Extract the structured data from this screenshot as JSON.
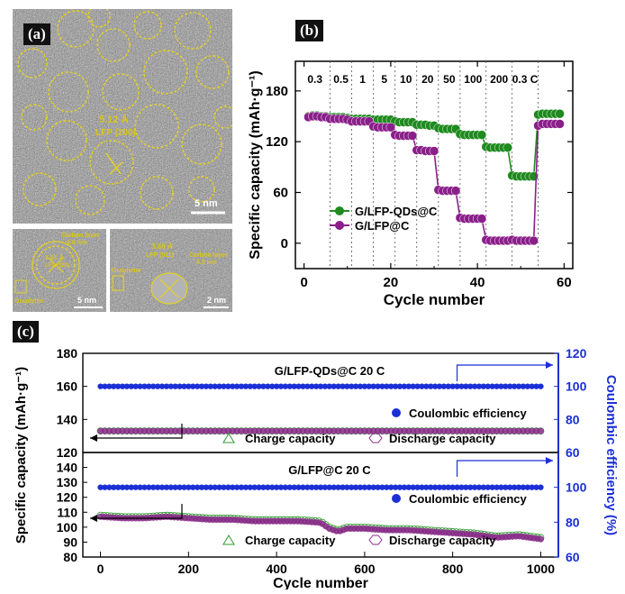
{
  "panel_a": {
    "label": "(a)",
    "main": {
      "spacing": "5.12 Å",
      "plane": "LFP (200)",
      "scale": "5 nm"
    },
    "inset_left": {
      "carbon_label": "Carbon layer",
      "carbon_thick": "0.6 nm",
      "spacing": "3.01 Å",
      "plane": "LFP (020)",
      "graphene": "Graphene",
      "scale": "5 nm"
    },
    "inset_right": {
      "spacing": "3.68 Å",
      "plane": "LFP (011)",
      "carbon_label": "Carbon layer",
      "carbon_thick": "0.5 nm",
      "graphene": "Graphene",
      "scale": "2 nm"
    },
    "colors": {
      "annotation": "#e6d21c",
      "background": "#8c8c8c"
    }
  },
  "panel_b": {
    "label": "(b)"
  },
  "panel_c": {
    "label": "(c)"
  },
  "chart_data": [
    {
      "type": "line",
      "panel": "(b)",
      "xlabel": "Cycle number",
      "ylabel": "Specific capacity (mAh·g⁻¹)",
      "xlim": [
        -2,
        62
      ],
      "ylim": [
        -30,
        215
      ],
      "xticks": [
        0,
        20,
        40,
        60
      ],
      "yticks": [
        0,
        60,
        120,
        180
      ],
      "rate_labels": [
        "0.3",
        "0.5",
        "1",
        "5",
        "10",
        "20",
        "50",
        "100",
        "200",
        "0.3 C"
      ],
      "rate_boundaries": [
        6,
        11,
        16,
        21,
        26,
        31,
        36,
        42,
        48,
        54
      ],
      "grid": false,
      "legend_position": "center-left",
      "series": [
        {
          "name": "G/LFP-QDs@C",
          "color": "#1f8a1f",
          "segments": [
            {
              "x": [
                1,
                2,
                3,
                4,
                5
              ],
              "y": [
                150,
                151,
                151,
                150,
                150
              ]
            },
            {
              "x": [
                6,
                7,
                8,
                9,
                10
              ],
              "y": [
                149,
                149,
                149,
                149,
                148
              ]
            },
            {
              "x": [
                11,
                12,
                13,
                14,
                15
              ],
              "y": [
                147,
                147,
                147,
                147,
                147
              ]
            },
            {
              "x": [
                16,
                17,
                18,
                19,
                20
              ],
              "y": [
                146,
                146,
                146,
                146,
                146
              ]
            },
            {
              "x": [
                21,
                22,
                23,
                24,
                25
              ],
              "y": [
                144,
                143,
                143,
                143,
                143
              ]
            },
            {
              "x": [
                26,
                27,
                28,
                29,
                30
              ],
              "y": [
                140,
                140,
                140,
                139,
                139
              ]
            },
            {
              "x": [
                31,
                32,
                33,
                34,
                35
              ],
              "y": [
                136,
                135,
                135,
                135,
                135
              ]
            },
            {
              "x": [
                36,
                37,
                38,
                39,
                40,
                41
              ],
              "y": [
                129,
                128,
                128,
                128,
                128,
                128
              ]
            },
            {
              "x": [
                42,
                43,
                44,
                45,
                46,
                47
              ],
              "y": [
                114,
                113,
                113,
                113,
                113,
                113
              ]
            },
            {
              "x": [
                48,
                49,
                50,
                51,
                52,
                53
              ],
              "y": [
                80,
                79,
                79,
                79,
                79,
                79
              ]
            },
            {
              "x": [
                54,
                55,
                56,
                57,
                58,
                59
              ],
              "y": [
                152,
                153,
                153,
                153,
                153,
                153
              ]
            }
          ]
        },
        {
          "name": "G/LFP@C",
          "color": "#8a1f8a",
          "segments": [
            {
              "x": [
                1,
                2,
                3,
                4,
                5
              ],
              "y": [
                149,
                150,
                150,
                149,
                149
              ]
            },
            {
              "x": [
                6,
                7,
                8,
                9,
                10
              ],
              "y": [
                147,
                147,
                147,
                147,
                146
              ]
            },
            {
              "x": [
                11,
                12,
                13,
                14,
                15
              ],
              "y": [
                144,
                144,
                144,
                144,
                144
              ]
            },
            {
              "x": [
                16,
                17,
                18,
                19,
                20
              ],
              "y": [
                138,
                137,
                137,
                137,
                137
              ]
            },
            {
              "x": [
                21,
                22,
                23,
                24,
                25
              ],
              "y": [
                128,
                127,
                127,
                127,
                127
              ]
            },
            {
              "x": [
                26,
                27,
                28,
                29,
                30
              ],
              "y": [
                110,
                110,
                109,
                109,
                109
              ]
            },
            {
              "x": [
                31,
                32,
                33,
                34,
                35
              ],
              "y": [
                63,
                62,
                62,
                62,
                62
              ]
            },
            {
              "x": [
                36,
                37,
                38,
                39,
                40,
                41
              ],
              "y": [
                30,
                29,
                29,
                29,
                29,
                29
              ]
            },
            {
              "x": [
                42,
                43,
                44,
                45,
                46,
                47
              ],
              "y": [
                4,
                3,
                3,
                3,
                3,
                3
              ]
            },
            {
              "x": [
                48,
                49,
                50,
                51,
                52,
                53
              ],
              "y": [
                4,
                3,
                3,
                3,
                3,
                3
              ]
            },
            {
              "x": [
                54,
                55,
                56,
                57,
                58,
                59
              ],
              "y": [
                139,
                141,
                141,
                141,
                141,
                141
              ]
            }
          ]
        }
      ]
    },
    {
      "type": "scatter",
      "panel": "(c) top",
      "title": "G/LFP-QDs@C    20 C",
      "xlim": [
        -40,
        1040
      ],
      "ylim_left": [
        120,
        180
      ],
      "yticks_left": [
        120,
        140,
        160,
        180
      ],
      "ylim_right": [
        60,
        120
      ],
      "yticks_right": [
        60,
        80,
        100,
        120
      ],
      "series": [
        {
          "name": "Coulombic efficiency",
          "axis": "right",
          "color": "#1b2fd6",
          "x_range": [
            0,
            1000
          ],
          "value": 100
        },
        {
          "name": "Charge capacity",
          "axis": "left",
          "color": "#2e9a2e",
          "x_range": [
            0,
            1000
          ],
          "value": 133
        },
        {
          "name": "Discharge capacity",
          "axis": "left",
          "color": "#8a2a8a",
          "x_range": [
            0,
            1000
          ],
          "value": 133
        }
      ]
    },
    {
      "type": "scatter",
      "panel": "(c) bottom",
      "title": "G/LFP@C    20 C",
      "xlabel": "Cycle number",
      "xticks": [
        0,
        200,
        400,
        600,
        800,
        1000
      ],
      "xlim": [
        -40,
        1040
      ],
      "ylim_left": [
        80,
        150
      ],
      "yticks_left": [
        80,
        90,
        100,
        110,
        120,
        130,
        140
      ],
      "ylim_right": [
        60,
        120
      ],
      "yticks_right": [
        60,
        80,
        100
      ],
      "shared_ylabel_left": "Specific capacity (mAh·g⁻¹)",
      "shared_ylabel_right": "Coulombic efficiency (%)",
      "series": [
        {
          "name": "Coulombic efficiency",
          "axis": "right",
          "color": "#1b2fd6",
          "x_range": [
            0,
            1000
          ],
          "value": 100
        },
        {
          "name": "Charge capacity",
          "axis": "left",
          "color": "#2e9a2e",
          "x": [
            0,
            50,
            100,
            150,
            200,
            250,
            300,
            350,
            400,
            450,
            500,
            520,
            540,
            560,
            600,
            650,
            700,
            750,
            800,
            850,
            900,
            950,
            1000
          ],
          "y": [
            108,
            107,
            107,
            108,
            107,
            106,
            106,
            105,
            105,
            105,
            104,
            100,
            98,
            100,
            100,
            99,
            99,
            98,
            97,
            96,
            94,
            95,
            93
          ]
        },
        {
          "name": "Discharge capacity",
          "axis": "left",
          "color": "#8a2a8a",
          "x": [
            0,
            50,
            100,
            150,
            200,
            250,
            300,
            350,
            400,
            450,
            500,
            520,
            540,
            560,
            600,
            650,
            700,
            750,
            800,
            850,
            900,
            950,
            1000
          ],
          "y": [
            107,
            106,
            106,
            107,
            106,
            105,
            105,
            104,
            104,
            104,
            103,
            99,
            97,
            99,
            99,
            98,
            98,
            97,
            96,
            95,
            93,
            94,
            92
          ]
        }
      ]
    }
  ]
}
